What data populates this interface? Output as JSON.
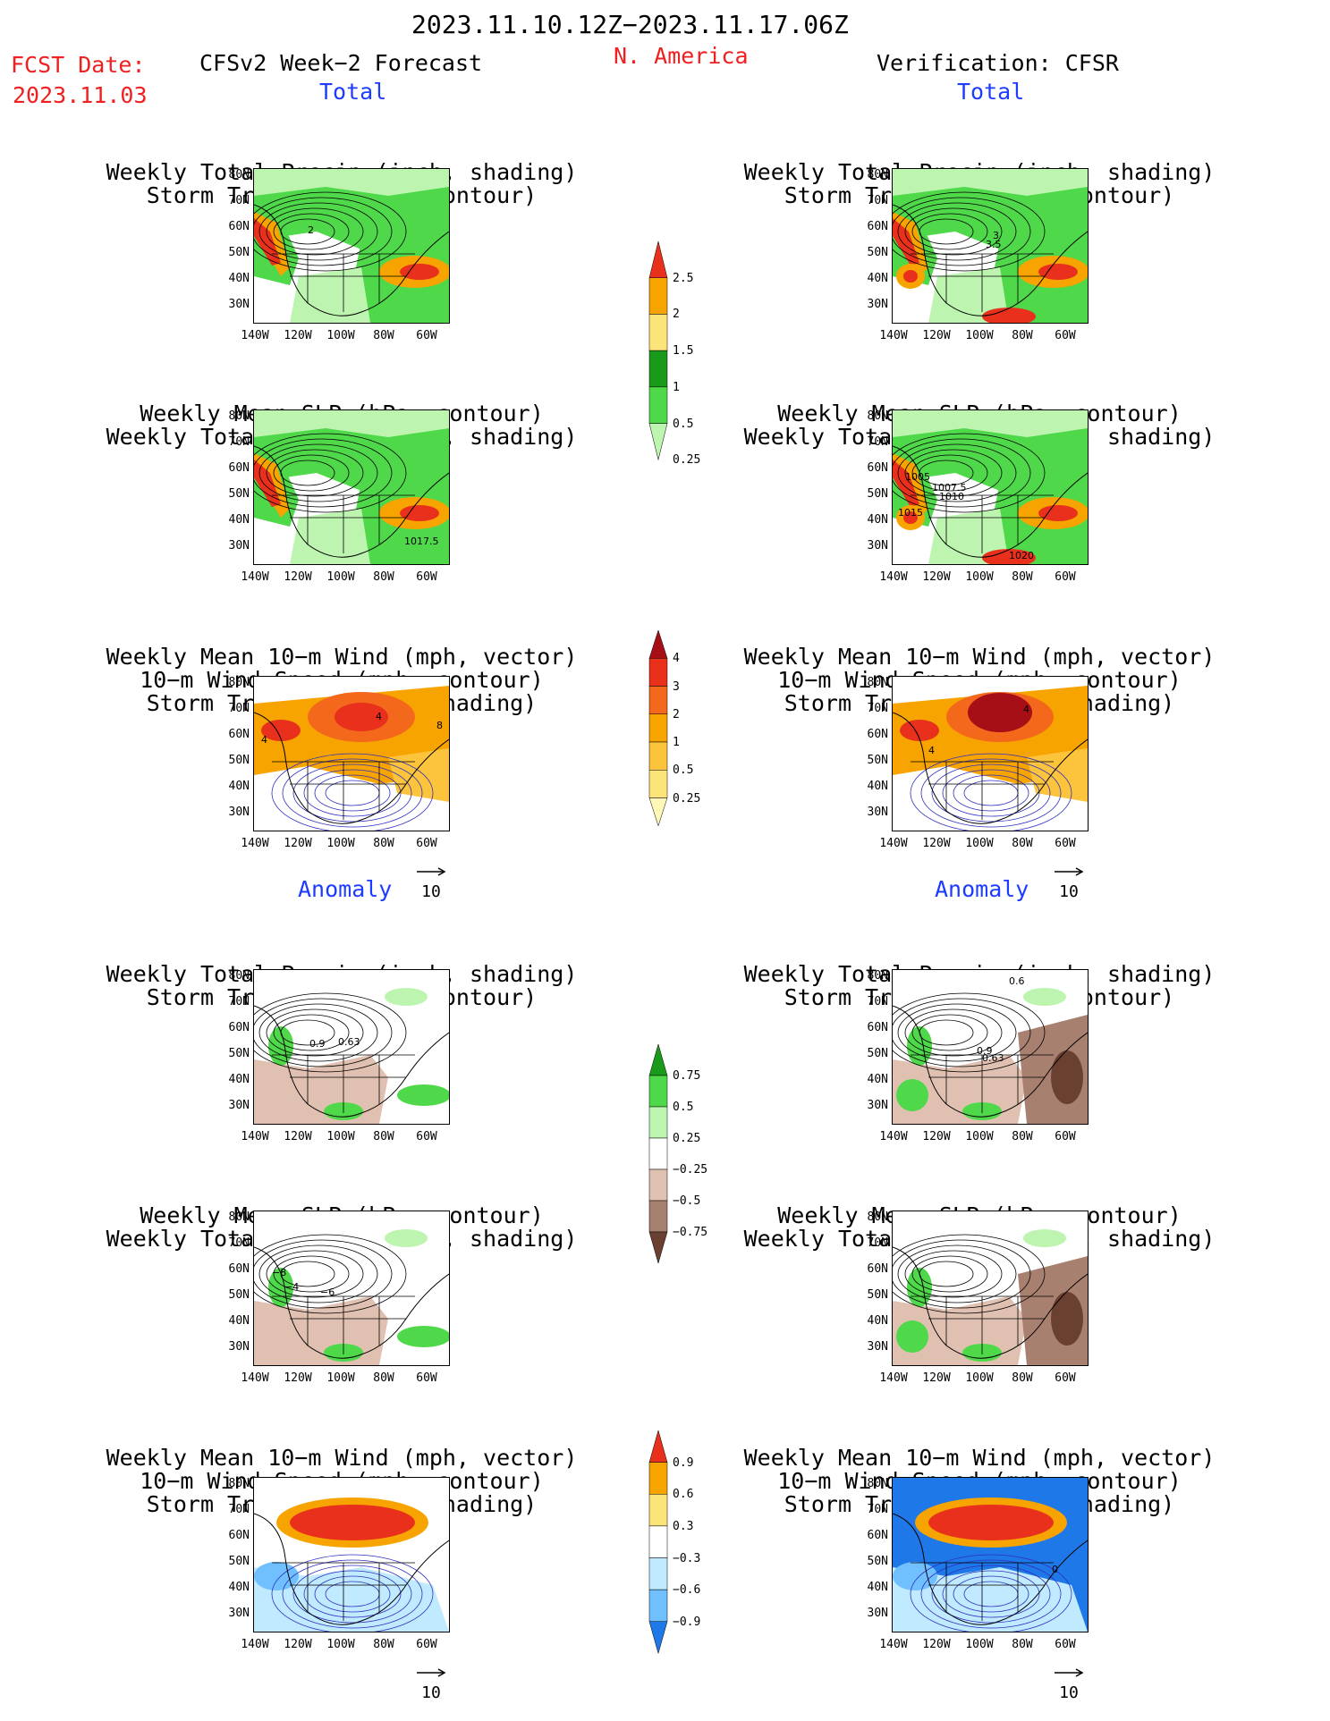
{
  "header": {
    "time_range": "2023.11.10.12Z−2023.11.17.06Z",
    "fcst_label": "FCST Date:",
    "fcst_date": "2023.11.03",
    "model_title": "CFSv2 Week−2 Forecast",
    "region": "N. America",
    "verification": "Verification: CFSR"
  },
  "sections": {
    "total": "Total",
    "anomaly": "Anomaly"
  },
  "panel_titles": {
    "precip_storm": [
      "Weekly Total Precip (inch, shading)",
      "Storm Track Density (contour)"
    ],
    "slp_precip": [
      "Weekly Mean SLP (hPa, contour)",
      "Weekly Total Precip (inch, shading)"
    ],
    "wind_storm": [
      "Weekly Mean 10−m Wind (mph, vector)",
      "10−m Wind Speed (mph, contour)",
      "Storm Track Density (shading)"
    ]
  },
  "axes": {
    "lat_labels": [
      "80N",
      "70N",
      "60N",
      "50N",
      "40N",
      "30N"
    ],
    "lon_labels": [
      "140W",
      "120W",
      "100W",
      "80W",
      "60W"
    ]
  },
  "vector_ref": "10",
  "map_labels": {
    "fc_precip_total": [
      "2"
    ],
    "vf_precip_total": [
      "3",
      "3.5"
    ],
    "fc_slp_total": [
      "1017.5"
    ],
    "vf_slp_total": [
      "1005",
      "1007.5",
      "1010",
      "1015",
      "1020"
    ],
    "fc_wind_total": [
      "4",
      "4",
      "8"
    ],
    "vf_wind_total": [
      "4",
      "4"
    ],
    "fc_precip_anom": [
      "0.9",
      "0.63"
    ],
    "vf_precip_anom": [
      "0.6",
      "0.9",
      "0.63"
    ],
    "fc_slp_anom": [
      "−8",
      "−6",
      "−4"
    ],
    "vf_wind_anom": [
      "0"
    ]
  },
  "colorbars": {
    "precip_total": {
      "labels": [
        "2.5",
        "2",
        "1.5",
        "1",
        "0.5",
        "0.25"
      ],
      "colors": [
        "#e8301c",
        "#f7a400",
        "#fde47a",
        "#1a9a1a",
        "#4fd84a",
        "#bdf5b0"
      ]
    },
    "storm_total": {
      "labels": [
        "4",
        "3",
        "2",
        "1",
        "0.5",
        "0.25"
      ],
      "colors": [
        "#a50f15",
        "#e8301c",
        "#f4681c",
        "#f7a400",
        "#fcc43c",
        "#fde47a",
        "#fff7b8"
      ]
    },
    "precip_anom": {
      "labels": [
        "0.75",
        "0.5",
        "0.25",
        "−0.25",
        "−0.5",
        "−0.75"
      ],
      "colors": [
        "#1a9a1a",
        "#4fd84a",
        "#bdf5b0",
        "#ffffff",
        "#e0c0b0",
        "#a88070",
        "#6a4030"
      ]
    },
    "storm_anom": {
      "labels": [
        "0.9",
        "0.6",
        "0.3",
        "−0.3",
        "−0.6",
        "−0.9"
      ],
      "colors": [
        "#e8301c",
        "#f7a400",
        "#fde47a",
        "#ffffff",
        "#c0eaff",
        "#70c0ff",
        "#1e78e8"
      ]
    }
  },
  "colors": {
    "red_text": "#f02020",
    "blue_text": "#1e3cff",
    "green_light": "#bdf5b0",
    "green": "#4fd84a",
    "green_dark": "#1a9a1a",
    "orange": "#f7a400",
    "red": "#e8301c",
    "brown_light": "#e0c0b0",
    "brown": "#a88070",
    "brown_dark": "#6a4030",
    "blue_light": "#c0eaff",
    "blue": "#70c0ff",
    "blue_dark": "#1e78e8"
  }
}
